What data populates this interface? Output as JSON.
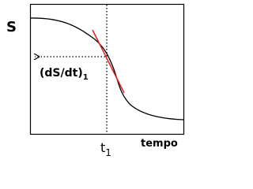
{
  "axes": {
    "y_label": "S",
    "x_label": "tempo"
  },
  "annotations": {
    "slope": {
      "text": "(dS/dt)",
      "subscript": "1"
    },
    "time": {
      "text": "t",
      "subscript": "1"
    }
  }
}
